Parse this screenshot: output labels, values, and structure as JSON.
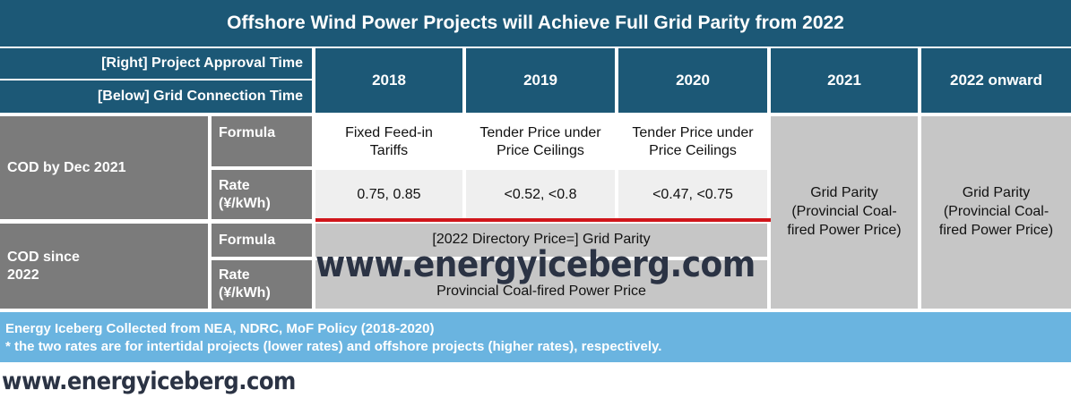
{
  "title": "Offshore Wind Power Projects will Achieve Full Grid Parity from 2022",
  "header": {
    "right_label": "[Right] Project Approval Time",
    "below_label": "[Below] Grid Connection Time",
    "years": [
      "2018",
      "2019",
      "2020",
      "2021",
      "2022 onward"
    ]
  },
  "rows": {
    "cod_2021": {
      "label": "COD by Dec 2021",
      "formula_label": "Formula",
      "rate_label_1": "Rate",
      "rate_label_2": "(¥/kWh)",
      "formula": [
        [
          "Fixed Feed-in",
          "Tariffs"
        ],
        [
          "Tender Price under",
          "Price Ceilings"
        ],
        [
          "Tender Price under",
          "Price Ceilings"
        ]
      ],
      "rates": [
        "0.75, 0.85",
        "<0.52, <0.8",
        "<0.47,  <0.75"
      ]
    },
    "cod_2022": {
      "label_1": "COD since",
      "label_2": "2022",
      "formula_label": "Formula",
      "rate_label_1": "Rate",
      "rate_label_2": "(¥/kWh)",
      "formula": "[2022 Directory Price=] Grid Parity",
      "rate": "Provincial Coal-fired Power Price"
    }
  },
  "grid_parity": [
    "Grid Parity",
    "(Provincial Coal-",
    "fired Power Price)"
  ],
  "footer": {
    "line1": "Energy Iceberg Collected from NEA, NDRC, MoF Policy (2018-2020)",
    "line2": "* the two rates are for intertidal projects (lower rates) and offshore projects (higher rates), respectively."
  },
  "watermark": "www.energyiceberg.com",
  "colors": {
    "header_navy": "#1c5876",
    "label_grey": "#7b7b7b",
    "cell_grey": "#c6c6c6",
    "cell_light": "#efefef",
    "footer_blue": "#6ab4e0",
    "red_divider": "#d0161b"
  }
}
